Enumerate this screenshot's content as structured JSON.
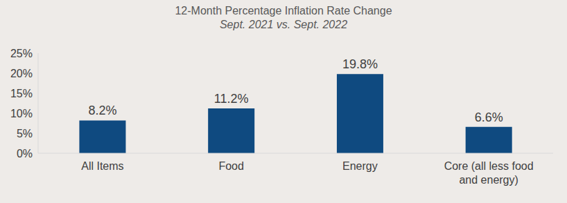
{
  "chart_data": {
    "type": "bar",
    "title": "12-Month Percentage Inflation Rate Change",
    "subtitle": "Sept. 2021 vs. Sept. 2022",
    "categories": [
      "All Items",
      "Food",
      "Energy",
      "Core (all less food and energy)"
    ],
    "values": [
      8.2,
      11.2,
      19.8,
      6.6
    ],
    "value_labels": [
      "8.2%",
      "11.2%",
      "19.8%",
      "6.6%"
    ],
    "color": "#0f4a80",
    "ylim": [
      0,
      25
    ],
    "yticks": [
      {
        "value": 0,
        "label": "0%"
      },
      {
        "value": 5,
        "label": "5%"
      },
      {
        "value": 10,
        "label": "10%"
      },
      {
        "value": 15,
        "label": "15%"
      },
      {
        "value": 20,
        "label": "20%"
      },
      {
        "value": 25,
        "label": "25%"
      }
    ],
    "grid": false,
    "data_labels": true
  }
}
